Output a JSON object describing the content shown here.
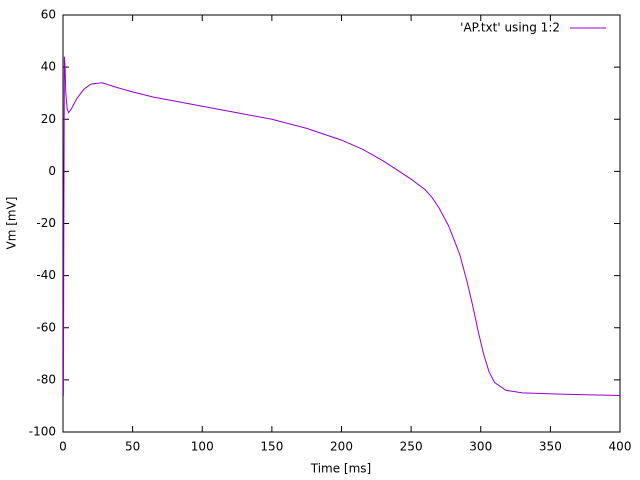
{
  "chart_data": {
    "type": "line",
    "xlabel": "Time [ms]",
    "ylabel": "Vm [mV]",
    "x": [
      0,
      0.3,
      0.6,
      1,
      1.5,
      2,
      3,
      4,
      6,
      10,
      15,
      20,
      28,
      40,
      50,
      65,
      80,
      100,
      125,
      150,
      175,
      200,
      215,
      230,
      240,
      250,
      260,
      265,
      270,
      277,
      285,
      290,
      294,
      298,
      302,
      306,
      310,
      318,
      330,
      360,
      400
    ],
    "series": [
      {
        "name": "'AP.txt' using 1:2",
        "color": "#9400d3",
        "values": [
          -86,
          -86,
          -20,
          44,
          40,
          30,
          24,
          22.5,
          24,
          28,
          31.5,
          33.5,
          34,
          32,
          30.5,
          28.5,
          27,
          25,
          22.5,
          20,
          16.5,
          12,
          8.5,
          4,
          0.5,
          -3,
          -7,
          -10,
          -14,
          -21,
          -32,
          -42,
          -51,
          -61,
          -70,
          -77,
          -81,
          -84,
          -85,
          -85.5,
          -86
        ]
      }
    ],
    "xlim": [
      0,
      400
    ],
    "xticks": [
      0,
      50,
      100,
      150,
      200,
      250,
      300,
      350,
      400
    ],
    "ylim": [
      -100,
      60
    ],
    "yticks": [
      -100,
      -80,
      -60,
      -40,
      -20,
      0,
      20,
      40,
      60
    ],
    "legend": "top-right",
    "grid": false
  }
}
